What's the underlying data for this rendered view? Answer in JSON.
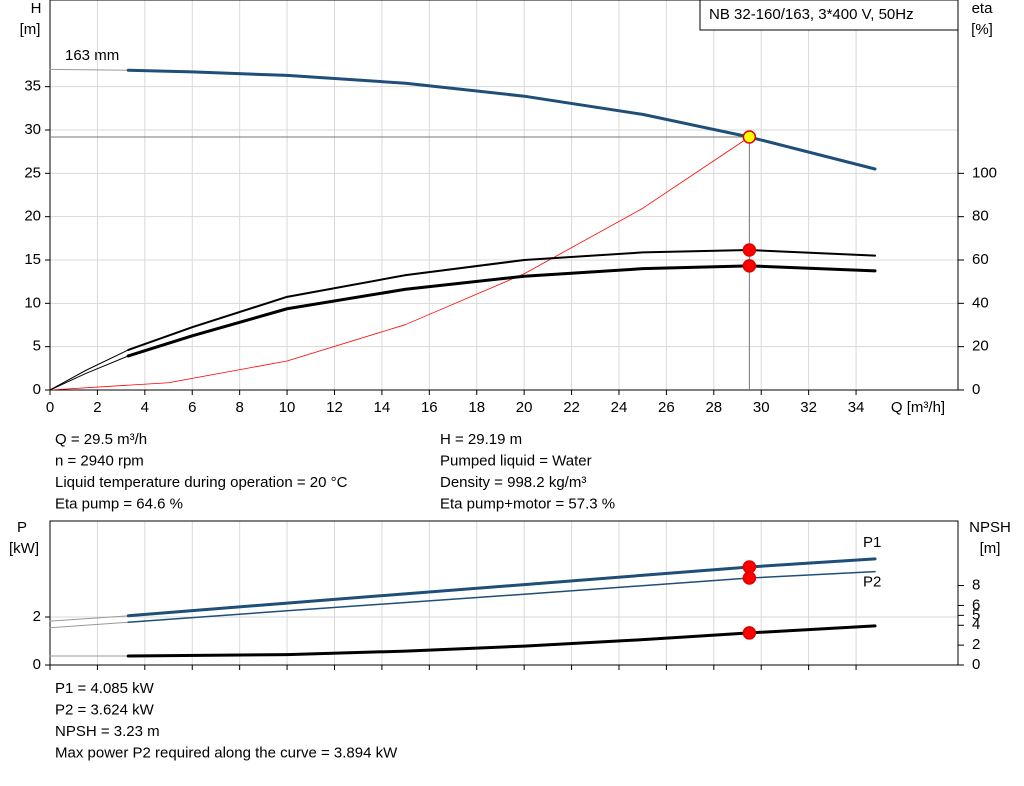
{
  "chart_data": [
    {
      "type": "line",
      "title": "NB 32-160/163, 3*400 V, 50Hz",
      "y_label": "H",
      "y_unit": "[m]",
      "y2_label": "eta",
      "y2_unit": "[%]",
      "x_label": "Q [m³/h]",
      "annotation": "163 mm",
      "grid": true,
      "xlim": [
        0,
        38.3
      ],
      "xticks": [
        0,
        2,
        4,
        6,
        8,
        10,
        12,
        14,
        16,
        18,
        20,
        22,
        24,
        26,
        28,
        30,
        32,
        34
      ],
      "ylim": [
        0,
        45
      ],
      "yticks": [
        0,
        5,
        10,
        15,
        20,
        25,
        30,
        35
      ],
      "y2lim": [
        0,
        180
      ],
      "y2ticks": [
        0,
        20,
        40,
        60,
        80,
        100
      ],
      "series": [
        {
          "color": "#999999",
          "width": 1,
          "x": [
            0,
            3.3
          ],
          "values": [
            37,
            36.9
          ]
        },
        {
          "color": "#1f4e79",
          "width": 3,
          "x": [
            3.3,
            6,
            10,
            15,
            20,
            25,
            29.5,
            34.8
          ],
          "values": [
            36.9,
            36.7,
            36.3,
            35.4,
            33.9,
            31.8,
            29.19,
            25.5
          ]
        },
        {
          "color": "#ff0000",
          "width": 0.8,
          "x": [
            0,
            5,
            10,
            15,
            20,
            25,
            29.5
          ],
          "values": [
            0,
            0.84,
            3.35,
            7.55,
            13.41,
            20.96,
            29.19
          ]
        },
        {
          "color": "#000000",
          "width": 1,
          "axis": "y2",
          "x": [
            0,
            1.5,
            3.3
          ],
          "values": [
            0,
            9,
            18.5
          ]
        },
        {
          "color": "#000000",
          "width": 2,
          "axis": "y2",
          "x": [
            3.3,
            6,
            10,
            15,
            20,
            25,
            29.5,
            34.8
          ],
          "values": [
            18.5,
            29,
            43,
            53,
            60,
            63.5,
            64.6,
            62
          ]
        },
        {
          "color": "#000000",
          "width": 1,
          "axis": "y2",
          "x": [
            0,
            1.5,
            3.3
          ],
          "values": [
            0,
            7.6,
            15.7
          ]
        },
        {
          "color": "#000000",
          "width": 3,
          "axis": "y2",
          "x": [
            3.3,
            6,
            10,
            15,
            20,
            25,
            29.5,
            34.8
          ],
          "values": [
            15.7,
            25,
            37.5,
            46.5,
            52.5,
            56,
            57.3,
            55
          ]
        }
      ],
      "markers": [
        {
          "x": 29.5,
          "y": 29.19,
          "color": "#ffff00"
        },
        {
          "x": 29.5,
          "y": 64.6,
          "color": "#ff0000",
          "axis": "y2"
        },
        {
          "x": 29.5,
          "y": 57.3,
          "color": "#ff0000",
          "axis": "y2"
        }
      ]
    },
    {
      "type": "line",
      "y_label": "P",
      "y_unit": "[kW]",
      "y2_label": "NPSH",
      "y2_unit": "[m]",
      "grid": true,
      "xlim": [
        0,
        38.3
      ],
      "ylim": [
        0,
        6
      ],
      "yticks": [
        0,
        2
      ],
      "y2lim": [
        0,
        14.5
      ],
      "y2ticks": [
        0,
        2,
        4,
        5,
        6,
        8
      ],
      "series": [
        {
          "color": "#999999",
          "width": 1,
          "x": [
            0,
            3.3
          ],
          "values": [
            1.83,
            2.05
          ]
        },
        {
          "name": "P1",
          "color": "#1f4e79",
          "width": 3,
          "x": [
            3.3,
            10,
            20,
            29.5,
            34.8
          ],
          "values": [
            2.05,
            2.58,
            3.35,
            4.085,
            4.42
          ]
        },
        {
          "color": "#999999",
          "width": 1,
          "x": [
            0,
            3.3
          ],
          "values": [
            1.55,
            1.78
          ]
        },
        {
          "name": "P2",
          "color": "#1f4e79",
          "width": 1.5,
          "x": [
            3.3,
            10,
            20,
            29.5,
            34.8
          ],
          "values": [
            1.78,
            2.26,
            2.95,
            3.624,
            3.89
          ]
        },
        {
          "color": "#999999",
          "width": 1,
          "axis": "y2",
          "x": [
            0,
            3.3
          ],
          "values": [
            0.9,
            0.9
          ]
        },
        {
          "color": "#000000",
          "width": 3,
          "axis": "y2",
          "x": [
            3.3,
            10,
            15,
            20,
            25,
            29.5,
            34.8
          ],
          "values": [
            0.9,
            1.05,
            1.4,
            1.9,
            2.55,
            3.23,
            3.94
          ]
        }
      ],
      "markers": [
        {
          "x": 29.5,
          "y": 4.085,
          "color": "#ff0000"
        },
        {
          "x": 29.5,
          "y": 3.624,
          "color": "#ff0000"
        },
        {
          "x": 29.5,
          "y": 3.23,
          "color": "#ff0000",
          "axis": "y2"
        }
      ]
    }
  ],
  "info_top_left": [
    "Q = 29.5 m³/h",
    "n = 2940 rpm",
    "Liquid temperature during operation = 20 °C",
    "Eta pump = 64.6 %"
  ],
  "info_top_right": [
    "H = 29.19 m",
    "Pumped liquid = Water",
    "Density = 998.2 kg/m³",
    "Eta pump+motor = 57.3 %"
  ],
  "info_bottom": [
    "P1 = 4.085 kW",
    "P2 = 3.624 kW",
    "NPSH = 3.23 m",
    "Max power P2 required along the curve = 3.894 kW"
  ]
}
